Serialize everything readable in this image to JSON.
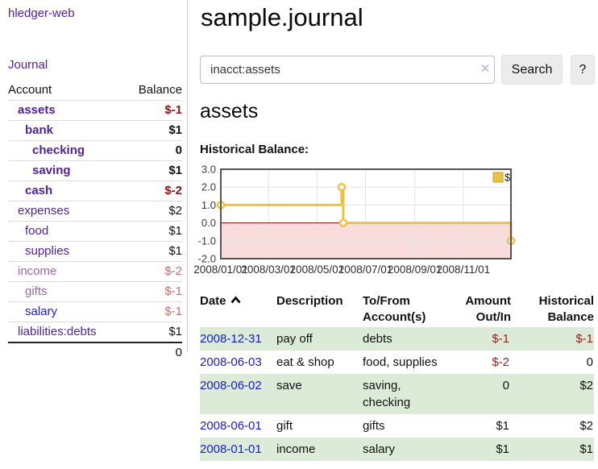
{
  "app": {
    "brand": "hledger-web",
    "nav_journal": "Journal"
  },
  "sidebar": {
    "header": {
      "account": "Account",
      "balance": "Balance"
    },
    "accounts": [
      {
        "name": "assets",
        "depth": 1,
        "bold": true,
        "link_color": "purple",
        "balance": "$-1",
        "balance_style": "neg-strong"
      },
      {
        "name": "bank",
        "depth": 2,
        "bold": true,
        "link_color": "purple",
        "balance": "$1",
        "balance_style": "pos-strong"
      },
      {
        "name": "checking",
        "depth": 3,
        "bold": true,
        "link_color": "purple",
        "balance": "0",
        "balance_style": "pos-strong"
      },
      {
        "name": "saving",
        "depth": 3,
        "bold": true,
        "link_color": "purple",
        "balance": "$1",
        "balance_style": "pos-strong"
      },
      {
        "name": "cash",
        "depth": 2,
        "bold": true,
        "link_color": "purple",
        "balance": "$-2",
        "balance_style": "neg-strong"
      },
      {
        "name": "expenses",
        "depth": 1,
        "bold": false,
        "link_color": "purple",
        "balance": "$2",
        "balance_style": "pos"
      },
      {
        "name": "food",
        "depth": 2,
        "bold": false,
        "link_color": "purple",
        "balance": "$1",
        "balance_style": "pos"
      },
      {
        "name": "supplies",
        "depth": 2,
        "bold": false,
        "link_color": "purple",
        "balance": "$1",
        "balance_style": "pos"
      },
      {
        "name": "income",
        "depth": 1,
        "bold": false,
        "link_color": "muted",
        "balance": "$-2",
        "balance_style": "neg"
      },
      {
        "name": "gifts",
        "depth": 2,
        "bold": false,
        "link_color": "muted",
        "balance": "$-1",
        "balance_style": "neg"
      },
      {
        "name": "salary",
        "depth": 2,
        "bold": false,
        "link_color": "blue",
        "balance": "$-1",
        "balance_style": "neg"
      },
      {
        "name": "liabilities:debts",
        "depth": 1,
        "bold": false,
        "link_color": "purple",
        "balance": "$1",
        "balance_style": "pos"
      }
    ],
    "total": "0"
  },
  "header": {
    "title": "sample.journal"
  },
  "search": {
    "query": "inacct:assets",
    "clear_glyph": "×",
    "button_label": "Search",
    "help_label": "?"
  },
  "account_page": {
    "heading": "assets",
    "chart_label": "Historical Balance:"
  },
  "chart_data": {
    "type": "line",
    "step": true,
    "title": "Historical Balance",
    "series": [
      {
        "name": "$",
        "color": "#EDC240",
        "points": [
          {
            "date": "2008-01-01",
            "day": 0,
            "value": 1
          },
          {
            "date": "2008-06-01",
            "day": 152,
            "value": 2
          },
          {
            "date": "2008-06-02",
            "day": 153,
            "value": 2
          },
          {
            "date": "2008-06-03",
            "day": 154,
            "value": 0
          },
          {
            "date": "2008-12-31",
            "day": 365,
            "value": -1
          }
        ]
      }
    ],
    "xlim_days": [
      0,
      365
    ],
    "xticks": [
      {
        "day": 0,
        "label": "2008/01/01"
      },
      {
        "day": 60,
        "label": "2008/03/01"
      },
      {
        "day": 121,
        "label": "2008/05/01"
      },
      {
        "day": 182,
        "label": "2008/07/01"
      },
      {
        "day": 244,
        "label": "2008/09/01"
      },
      {
        "day": 305,
        "label": "2008/11/01"
      }
    ],
    "ylim": [
      -2,
      3
    ],
    "yticks": [
      "3.0",
      "2.0",
      "1.0",
      "0.0",
      "-1.0",
      "-2.0"
    ],
    "grid": true,
    "legend_position": "top-right",
    "legend_label": "$",
    "negative_region_color": "#f9dddd",
    "zero_line_color": "#8b0000",
    "grid_color": "#e3e3e3",
    "border_color": "#545454"
  },
  "register": {
    "columns": [
      {
        "label": "Date",
        "align": "left",
        "sorted": "asc"
      },
      {
        "label": "Description",
        "align": "left"
      },
      {
        "label": "To/From\nAccount(s)",
        "align": "left"
      },
      {
        "label": "Amount\nOut/In",
        "align": "right"
      },
      {
        "label": "Historical\nBalance",
        "align": "right"
      }
    ],
    "rows": [
      {
        "date": "2008-12-31",
        "description": "pay off",
        "accounts": "debts",
        "amount": "$-1",
        "amount_negative": true,
        "balance": "$-1",
        "balance_negative": true
      },
      {
        "date": "2008-06-03",
        "description": "eat & shop",
        "accounts": "food, supplies",
        "amount": "$-2",
        "amount_negative": true,
        "balance": "0",
        "balance_negative": false
      },
      {
        "date": "2008-06-02",
        "description": "save",
        "accounts": "saving, checking",
        "amount": "0",
        "amount_negative": false,
        "balance": "$2",
        "balance_negative": false
      },
      {
        "date": "2008-06-01",
        "description": "gift",
        "accounts": "gifts",
        "amount": "$1",
        "amount_negative": false,
        "balance": "$2",
        "balance_negative": false
      },
      {
        "date": "2008-01-01",
        "description": "income",
        "accounts": "salary",
        "amount": "$1",
        "amount_negative": false,
        "balance": "$1",
        "balance_negative": false
      }
    ]
  }
}
